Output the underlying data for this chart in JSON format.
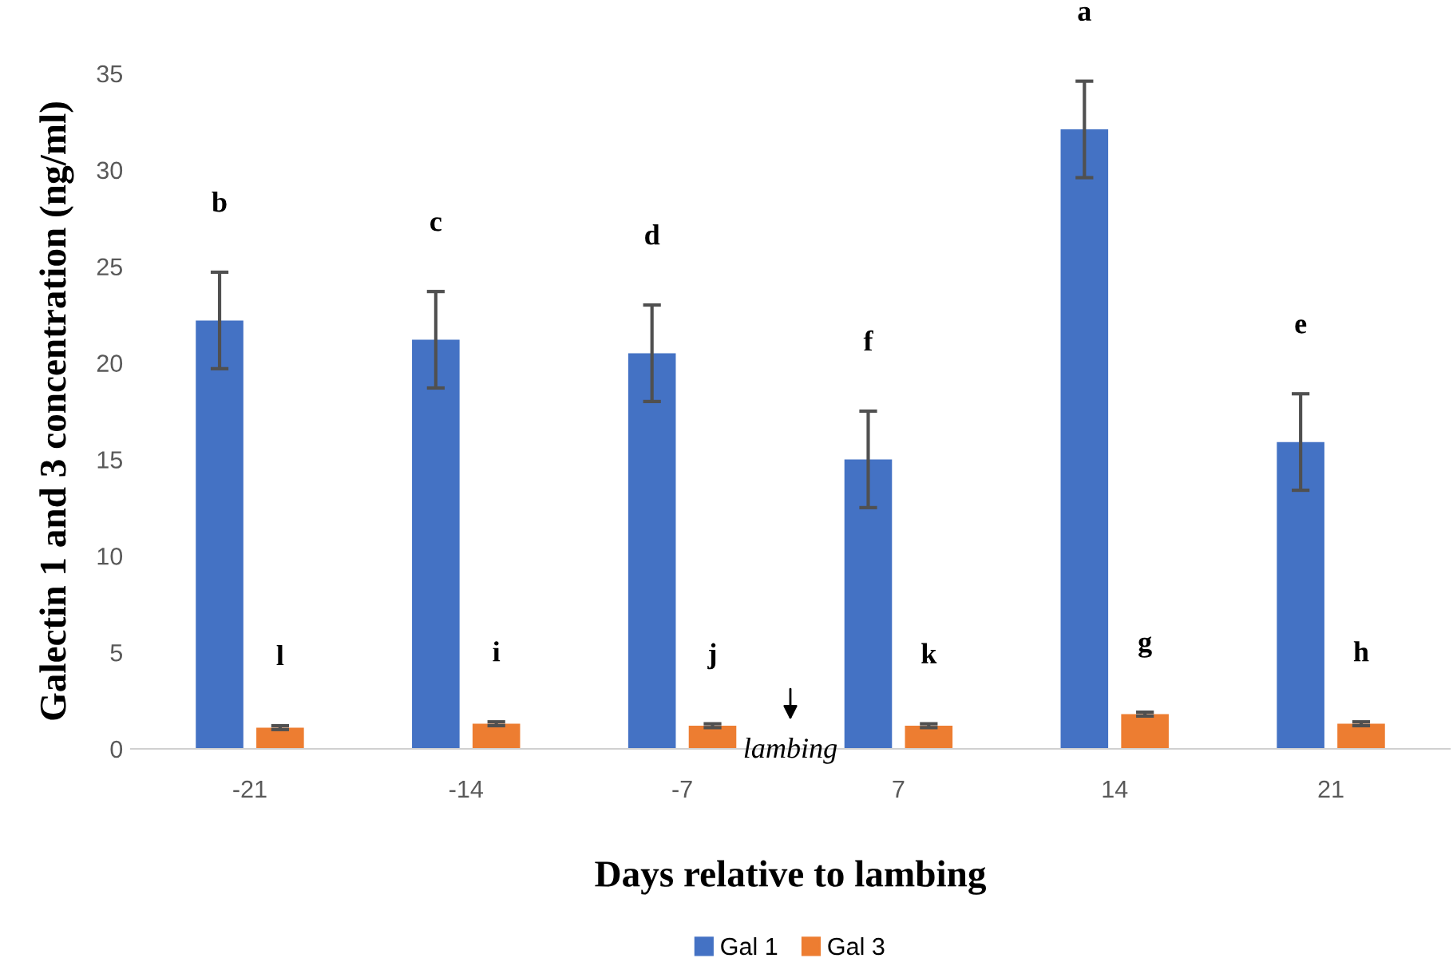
{
  "chart_data": {
    "type": "bar",
    "categories": [
      "-21",
      "-14",
      "-7",
      "7",
      "14",
      "21"
    ],
    "series": [
      {
        "name": "Gal 1",
        "color": "#4472c4",
        "values": [
          22.2,
          21.2,
          20.5,
          15.0,
          32.1,
          15.9
        ],
        "errors": [
          2.5,
          2.5,
          2.5,
          2.5,
          2.5,
          2.5
        ]
      },
      {
        "name": "Gal 3",
        "color": "#ed7d31",
        "values": [
          1.1,
          1.3,
          1.2,
          1.2,
          1.8,
          1.3
        ],
        "errors": [
          0.1,
          0.1,
          0.1,
          0.1,
          0.1,
          0.1
        ]
      }
    ],
    "xlabel": "Days relative to lambing",
    "ylabel": "Galectin 1 and 3 concentration (ng/ml)",
    "ylim": [
      0,
      35
    ],
    "yticks": [
      0,
      5,
      10,
      15,
      20,
      25,
      30,
      35
    ],
    "grid": false,
    "legend": "bottom",
    "annotations": [
      "b",
      "c",
      "d",
      "f",
      "a",
      "e",
      "l",
      "i",
      "j",
      "k",
      "g",
      "h",
      "lambing"
    ]
  }
}
